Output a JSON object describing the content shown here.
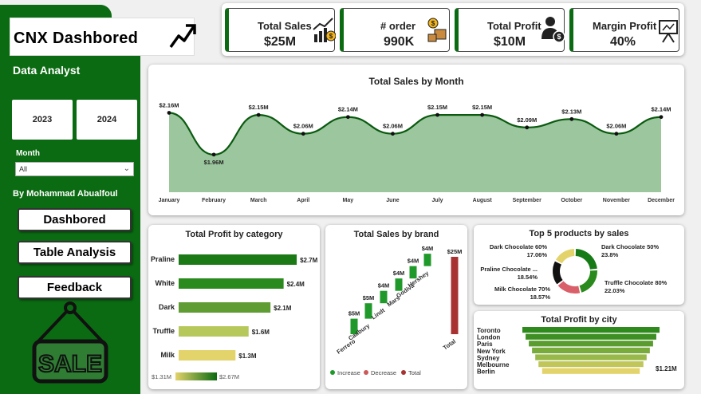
{
  "header": {
    "title": "CNX Dashbored"
  },
  "sidebar": {
    "subtitle": "Data Analyst",
    "years": [
      "2023",
      "2024"
    ],
    "month_label": "Month",
    "month_value": "All",
    "author": "By Mohammad Abualfoul",
    "nav": [
      "Dashbored",
      "Table Analysis",
      "Feedback"
    ],
    "sale_sign": "SALE"
  },
  "kpis": [
    {
      "label": "Total Sales",
      "value": "$25M",
      "icon": "chart-money-icon"
    },
    {
      "label": "# order",
      "value": "990K",
      "icon": "boxes-coin-icon"
    },
    {
      "label": "Total Profit",
      "value": "$10M",
      "icon": "person-dollar-icon"
    },
    {
      "label": "Margin Profit",
      "value": "40%",
      "icon": "presentation-board-icon"
    }
  ],
  "colors": {
    "brand": "#0b6b12",
    "area_fill": "#9cc79e",
    "line": "#0b5a10",
    "total_bar": "#a83232"
  },
  "chart_data": [
    {
      "id": "sales_by_month",
      "type": "area",
      "title": "Total Sales by Month",
      "x": [
        "January",
        "February",
        "March",
        "April",
        "May",
        "June",
        "July",
        "August",
        "September",
        "October",
        "November",
        "December"
      ],
      "values": [
        2.16,
        1.96,
        2.15,
        2.06,
        2.14,
        2.06,
        2.15,
        2.15,
        2.09,
        2.13,
        2.06,
        2.14
      ],
      "labels": [
        "$2.16M",
        "$1.96M",
        "$2.15M",
        "$2.06M",
        "$2.14M",
        "$2.06M",
        "$2.15M",
        "$2.15M",
        "$2.09M",
        "$2.13M",
        "$2.06M",
        "$2.14M"
      ],
      "ylim": [
        1.78,
        2.2
      ]
    },
    {
      "id": "profit_by_category",
      "type": "bar",
      "title": "Total Profit by category",
      "categories": [
        "Praline",
        "White",
        "Dark",
        "Truffle",
        "Milk"
      ],
      "values": [
        2.7,
        2.4,
        2.1,
        1.6,
        1.3
      ],
      "labels": [
        "$2.7M",
        "$2.4M",
        "$2.1M",
        "$1.6M",
        "$1.3M"
      ],
      "colors": [
        "#1b7a16",
        "#2a8a1e",
        "#5f9d34",
        "#b7c85a",
        "#e3d36b"
      ],
      "legend_min": "$1.31M",
      "legend_max": "$2.67M",
      "xlim": [
        0,
        3.1
      ]
    },
    {
      "id": "sales_by_brand",
      "type": "bar",
      "title": "Total Sales by brand",
      "categories": [
        "Ferrero",
        "Cadbury",
        "Lindt",
        "Mars",
        "Godiva",
        "Hershey",
        "Total"
      ],
      "values": [
        5,
        5,
        4,
        4,
        4,
        4,
        25
      ],
      "labels": [
        "$5M",
        "$5M",
        "$4M",
        "$4M",
        "$4M",
        "$4M",
        "$25M"
      ],
      "legend": [
        "Increase",
        "Decrease",
        "Total"
      ],
      "legend_colors": [
        "#1f9a2a",
        "#cc5a5a",
        "#a83232"
      ],
      "ylim": [
        0,
        25
      ]
    },
    {
      "id": "top5_products",
      "type": "pie",
      "title": "Top 5 products by sales",
      "labels": [
        "Dark Chocolate 50%",
        "Truffle Chocolate 80%",
        "Milk Chocolate 70%",
        "Praline Chocolate ...",
        "Dark Chocolate 60%"
      ],
      "values": [
        23.8,
        22.03,
        18.57,
        18.54,
        17.06
      ],
      "value_labels": [
        "23.8%",
        "22.03%",
        "18.57%",
        "18.54%",
        "17.06%"
      ],
      "colors": [
        "#167a16",
        "#2a8a1e",
        "#d9606a",
        "#111111",
        "#e3d36b"
      ]
    },
    {
      "id": "profit_by_city",
      "type": "bar",
      "title": "Total Profit by city",
      "categories": [
        "Toronto",
        "London",
        "Paris",
        "New York",
        "Sydney",
        "Melbourne",
        "Berlin"
      ],
      "values": [
        1.7,
        1.62,
        1.54,
        1.46,
        1.38,
        1.3,
        1.21
      ],
      "value_label": "$1.21M",
      "colors": [
        "#2f8a1e",
        "#3d8f24",
        "#5a9c2f",
        "#78aa3c",
        "#98b84a",
        "#c0c65a",
        "#e3d36b"
      ],
      "xlim": [
        0,
        1.7
      ]
    }
  ]
}
